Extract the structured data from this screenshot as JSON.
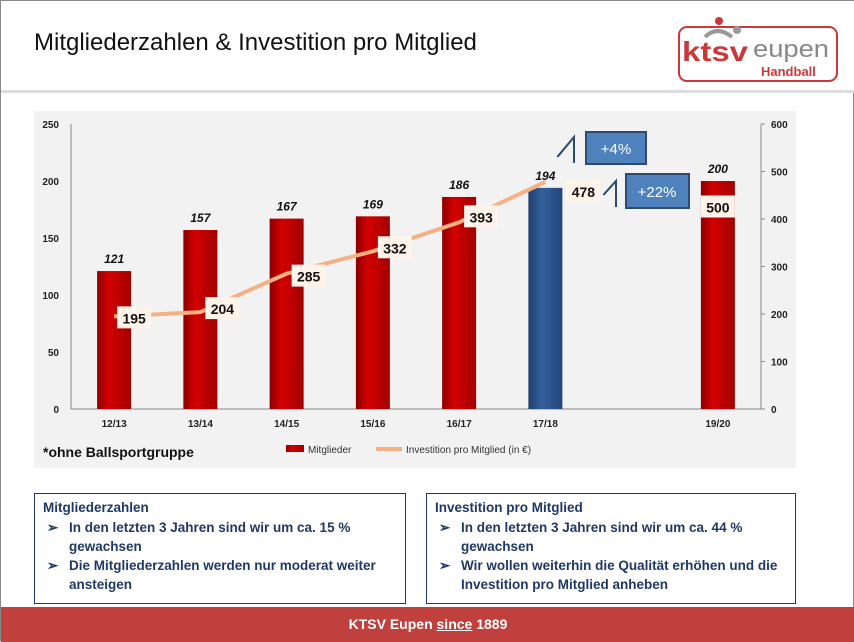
{
  "header": {
    "title": "Mitgliederzahlen & Investition pro Mitglied",
    "logo_text": "ktsv eupen Handball"
  },
  "colors": {
    "bar": "#c00000",
    "highlight_bar": "#2e5a94",
    "line": "#f4b183",
    "callout": "#4f81bd",
    "footer": "#c0403d"
  },
  "chart_data": {
    "type": "bar+line",
    "categories": [
      "12/13",
      "13/14",
      "14/15",
      "15/16",
      "16/17",
      "17/18",
      "",
      "19/20"
    ],
    "series": [
      {
        "name": "Mitglieder",
        "type": "bar",
        "axis": "left",
        "values": [
          121,
          157,
          167,
          169,
          186,
          194,
          null,
          200
        ],
        "highlight_index": 5
      },
      {
        "name": "Investition pro Mitglied (in €)",
        "type": "line",
        "axis": "right",
        "values": [
          195,
          204,
          285,
          332,
          393,
          478,
          null,
          500
        ]
      }
    ],
    "y_left": {
      "range": [
        0,
        250
      ],
      "ticks": [
        0,
        50,
        100,
        150,
        200,
        250
      ]
    },
    "y_right": {
      "range": [
        0,
        600
      ],
      "ticks": [
        0,
        100,
        200,
        300,
        400,
        500,
        600
      ]
    },
    "annotations": [
      "+4%",
      "+22%"
    ],
    "footnote": "*ohne Ballsportgruppe",
    "legend_position": "bottom",
    "grid": false
  },
  "boxes": [
    {
      "title": "Mitgliederzahlen",
      "items": [
        "In den letzten 3 Jahren sind wir um ca. 15 % gewachsen",
        "Die Mitgliederzahlen werden nur moderat weiter ansteigen"
      ]
    },
    {
      "title": "Investition pro Mitglied",
      "items": [
        "In den letzten 3 Jahren sind wir um ca. 44 % gewachsen",
        "Wir wollen weiterhin die Qualität erhöhen und die Investition pro Mitglied anheben"
      ]
    }
  ],
  "footer": {
    "prefix": "KTSV Eupen ",
    "since": "since",
    "year": " 1889"
  }
}
